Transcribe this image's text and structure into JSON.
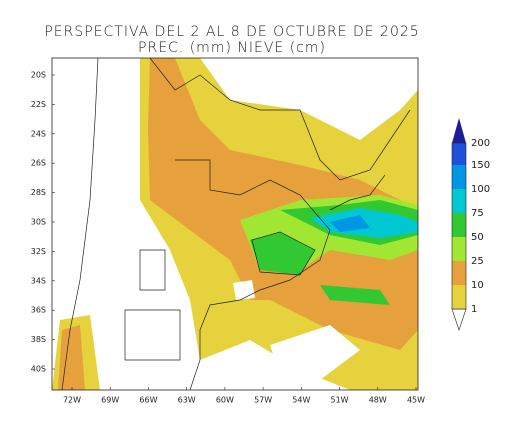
{
  "title": [
    "PERSPECTIVA DEL 2 AL 8 DE OCTUBRE DE 2025",
    "PREC. (mm) NIEVE (cm)"
  ],
  "latitude_labels": [
    "20S",
    "22S",
    "24S",
    "26S",
    "28S",
    "30S",
    "32S",
    "34S",
    "36S",
    "38S",
    "40S"
  ],
  "longitude_labels": [
    "72W",
    "69W",
    "66W",
    "63W",
    "60W",
    "57W",
    "54W",
    "51W",
    "48W",
    "45W"
  ],
  "legend_levels": [
    "1",
    "10",
    "25",
    "50",
    "75",
    "100",
    "150",
    "200"
  ]
}
